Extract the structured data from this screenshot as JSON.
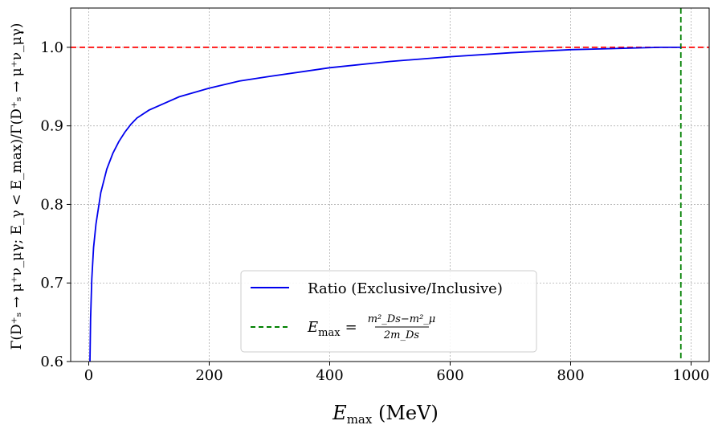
{
  "chart_data": {
    "type": "line",
    "xlabel_main": "E",
    "xlabel_sub": "max",
    "xlabel_unit": " (MeV)",
    "ylabel": "Γ(D⁺ₛ → μ⁺ν_μγ; E_γ < E_max)/Γ(D⁺ₛ → μ⁺ν_μγ)",
    "xlim": [
      -30,
      1030
    ],
    "ylim": [
      0.6,
      1.05
    ],
    "xticks": [
      0,
      200,
      400,
      600,
      800,
      1000
    ],
    "xtick_labels": [
      "0",
      "200",
      "400",
      "600",
      "800",
      "1000"
    ],
    "yticks": [
      0.6,
      0.7,
      0.8,
      0.9,
      1.0
    ],
    "ytick_labels": [
      "0.6",
      "0.7",
      "0.8",
      "0.9",
      "1.0"
    ],
    "grid": true,
    "legend_position": "lower-center",
    "series": [
      {
        "name": "Ratio (Exclusive/Inclusive)",
        "color": "#0000ee",
        "style": "solid",
        "x": [
          2,
          3,
          5,
          8,
          12,
          20,
          30,
          40,
          50,
          60,
          70,
          80,
          100,
          150,
          200,
          250,
          300,
          400,
          500,
          600,
          700,
          800,
          900,
          950,
          983
        ],
        "y": [
          0.6,
          0.655,
          0.705,
          0.745,
          0.775,
          0.815,
          0.845,
          0.865,
          0.88,
          0.892,
          0.902,
          0.91,
          0.92,
          0.937,
          0.948,
          0.957,
          0.963,
          0.974,
          0.982,
          0.988,
          0.993,
          0.997,
          0.999,
          1.0,
          1.0
        ]
      },
      {
        "name": "E_max = (m²_Ds − m²_μ)/(2 m_Ds)",
        "color": "#008000",
        "style": "dashed",
        "vertical_x": 983
      }
    ],
    "reference_line": {
      "y": 1.0,
      "color": "#ff0000",
      "style": "dashed"
    }
  },
  "legend": {
    "ratio_label": "Ratio (Exclusive/Inclusive)",
    "emax_lhs_main": "E",
    "emax_lhs_sub": "max",
    "emax_eq": "=",
    "emax_num": "m²_Ds−m²_μ",
    "emax_den": "2m_Ds"
  }
}
